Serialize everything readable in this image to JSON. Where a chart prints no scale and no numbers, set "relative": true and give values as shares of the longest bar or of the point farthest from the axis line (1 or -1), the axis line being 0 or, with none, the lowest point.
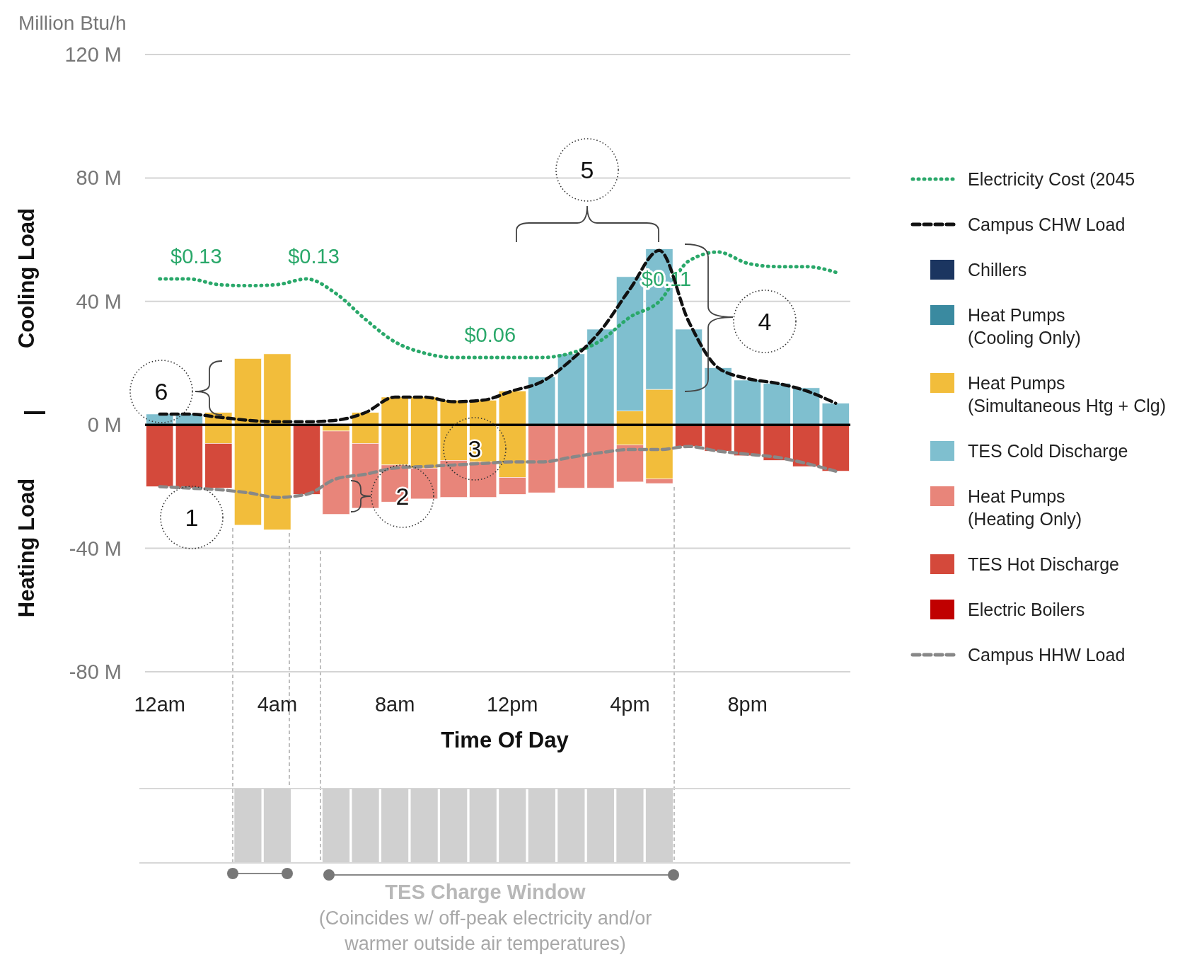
{
  "chart_data": [
    {
      "type": "bar",
      "stacked": true,
      "ylabel": "Million Btu/h",
      "xlabel": "Time Of Day",
      "categories": [
        "12am",
        null,
        null,
        null,
        "4am",
        null,
        null,
        null,
        "8am",
        null,
        null,
        null,
        "12pm",
        null,
        null,
        null,
        "4pm",
        null,
        null,
        null,
        "8pm",
        null,
        null,
        null
      ],
      "ylim": [
        -80,
        120
      ],
      "yticks": [
        {
          "value": -80,
          "label": "-80 M"
        },
        {
          "value": -40,
          "label": "-40 M"
        },
        {
          "value": 0,
          "label": "0 M"
        },
        {
          "value": 40,
          "label": "40 M"
        },
        {
          "value": 80,
          "label": "80 M"
        },
        {
          "value": 120,
          "label": "120 M"
        }
      ],
      "y2lim": [
        -0.22,
        0.33
      ],
      "grid": "y",
      "legend": "right",
      "ref_lines": [
        {
          "axis": "y",
          "value": 0,
          "color": "#000000"
        }
      ],
      "annotations": [
        "Cooling Load",
        "Heating Load",
        "1",
        "2",
        "3",
        "4",
        "5",
        "6"
      ],
      "series": [
        {
          "name": "Electricity Cost (2045",
          "type": "line",
          "axis": "y2",
          "line_style": "dotted",
          "color": "#2aa86a",
          "values": [
            0.13,
            0.13,
            0.125,
            0.124,
            0.125,
            0.13,
            0.117,
            0.094,
            0.074,
            0.064,
            0.06,
            0.06,
            0.06,
            0.06,
            0.064,
            0.075,
            0.096,
            0.11,
            0.146,
            0.154,
            0.144,
            0.141,
            0.141,
            0.136
          ],
          "value_labels": [
            null,
            "$0.13",
            null,
            null,
            null,
            "$0.13",
            null,
            null,
            null,
            null,
            null,
            "$0.06",
            null,
            null,
            null,
            null,
            null,
            "$0.11",
            null,
            null,
            null,
            null,
            null,
            null
          ]
        },
        {
          "name": "Campus CHW Load",
          "type": "line",
          "line_style": "dashed",
          "color": "#111111",
          "values": [
            3.5,
            3.5,
            2.5,
            1.5,
            1,
            1,
            1.5,
            4,
            9,
            9,
            7.5,
            8,
            11,
            14,
            21,
            30.5,
            44,
            56.5,
            33.5,
            18.5,
            15,
            13.5,
            11,
            7
          ]
        },
        {
          "name": "Chillers",
          "color": "#1b3560",
          "values": [
            0,
            0,
            0,
            0,
            0,
            0,
            0,
            0,
            0,
            0,
            0,
            0,
            0,
            0,
            0,
            0,
            0,
            0,
            0,
            0,
            0,
            0,
            0,
            0
          ]
        },
        {
          "name": "Heat Pumps (Cooling Only)",
          "color": "#3a8aa0",
          "values": [
            0,
            0,
            0,
            0,
            0,
            0,
            0,
            0,
            0,
            0,
            0,
            0,
            0,
            0,
            0,
            0,
            0,
            0,
            0,
            0,
            0,
            0,
            0,
            0
          ]
        },
        {
          "name": "Heat Pumps (Simultaneous Htg + Clg)",
          "color": "#f2bd3b",
          "values": [
            0,
            0,
            4,
            21.5,
            23,
            0,
            0,
            4,
            9,
            9,
            8,
            8,
            11,
            0,
            0,
            0,
            4.5,
            11.5,
            0,
            0,
            0,
            0,
            0,
            0
          ]
        },
        {
          "color": "#f2bd3b",
          "values": [
            0,
            0,
            -6,
            -32.5,
            -34,
            0,
            -2,
            -6,
            -13,
            -14,
            -11.5,
            -12,
            -17,
            0,
            0,
            0,
            -6.5,
            -17.5,
            0,
            0,
            0,
            0,
            0,
            0
          ]
        },
        {
          "name": "TES Cold Discharge",
          "color": "#7fbfcf",
          "values": [
            3.5,
            3.5,
            0,
            0,
            0,
            0,
            0,
            0,
            0,
            0,
            0,
            0,
            0,
            15.5,
            23,
            31,
            43.5,
            45.5,
            31,
            18.5,
            14.5,
            13.5,
            12,
            7
          ]
        },
        {
          "name": "Heat Pumps (Heating Only)",
          "color": "#e8857a",
          "values": [
            0,
            0,
            0,
            0,
            0,
            0,
            -27,
            -21,
            -12,
            -10,
            -12,
            -11.5,
            -5.5,
            -22,
            -20.5,
            -20.5,
            -12,
            -1.5,
            0,
            0,
            0,
            0,
            0,
            0
          ]
        },
        {
          "name": "TES Hot Discharge",
          "color": "#d4493b",
          "values": [
            -20,
            -20.5,
            -14.5,
            0,
            0,
            -22.5,
            0,
            0,
            0,
            0,
            0,
            0,
            0,
            0,
            0,
            0,
            0,
            0,
            -7,
            -8.5,
            -10,
            -11.5,
            -13.5,
            -15
          ]
        },
        {
          "name": "Electric Boilers",
          "color": "#c00000",
          "values": [
            0,
            0,
            0,
            0,
            0,
            0,
            0,
            0,
            0,
            0,
            0,
            0,
            0,
            0,
            0,
            0,
            0,
            0,
            0,
            0,
            0,
            0,
            0,
            0
          ]
        },
        {
          "name": "Campus HHW Load",
          "type": "line",
          "line_style": "dashed",
          "color": "#888888",
          "values": [
            -20,
            -20.5,
            -21,
            -22,
            -23.5,
            -22.5,
            -17.5,
            -16,
            -14,
            -13.5,
            -13,
            -12.5,
            -12,
            -12,
            -10.5,
            -9,
            -8,
            -8,
            -7,
            -8.5,
            -9.5,
            -10.5,
            -12.5,
            -15
          ]
        }
      ]
    },
    {
      "type": "bar",
      "relative": true,
      "title": "TES Charge Window",
      "color": "#d0d0d0",
      "categories": [
        null,
        null,
        null,
        null,
        null,
        null,
        null,
        null,
        null,
        null,
        null,
        null,
        null,
        null,
        null,
        null,
        null,
        null,
        null,
        null,
        null,
        null,
        null,
        null
      ],
      "values": [
        0,
        0,
        0,
        1,
        1,
        0,
        1,
        1,
        1,
        1,
        1,
        1,
        1,
        1,
        1,
        1,
        1,
        1,
        0,
        0,
        0,
        0,
        0,
        0
      ],
      "annotations": [
        "(Coincides w/ off-peak electricity and/or",
        "warmer outside air temperatures)"
      ]
    }
  ]
}
